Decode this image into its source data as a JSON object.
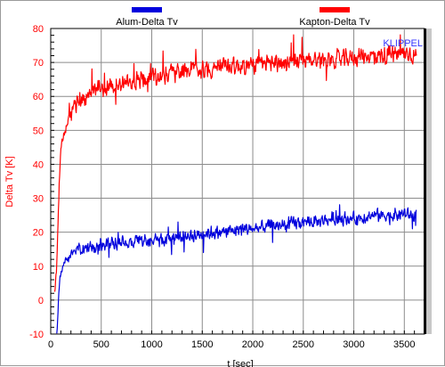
{
  "chart_data": {
    "type": "line",
    "title": "",
    "xlabel": "t [sec]",
    "ylabel": "Delta Tv [K]",
    "xlim": [
      0,
      3700
    ],
    "ylim": [
      -10,
      80
    ],
    "x_ticks": [
      0,
      500,
      1000,
      1500,
      2000,
      2500,
      3000,
      3500
    ],
    "y_ticks": [
      -10,
      0,
      10,
      20,
      30,
      40,
      50,
      60,
      70,
      80
    ],
    "grid": true,
    "legend_position": "top",
    "watermark": "KLIPPEL",
    "colors": {
      "axis_text": "#ff0000",
      "watermark": "#3333ff",
      "grid": "#808080"
    },
    "series": [
      {
        "name": "Kapton-Delta Tv",
        "color": "#ff0000",
        "x": [
          40,
          55,
          70,
          85,
          100,
          120,
          150,
          200,
          250,
          300,
          350,
          400,
          450,
          500,
          550,
          600,
          700,
          800,
          900,
          1000,
          1100,
          1200,
          1300,
          1400,
          1500,
          1600,
          1700,
          1800,
          1900,
          2000,
          2100,
          2200,
          2300,
          2400,
          2500,
          2600,
          2700,
          2800,
          2900,
          3000,
          3100,
          3200,
          3300,
          3400,
          3500,
          3550,
          3600,
          3620
        ],
        "y": [
          2,
          8,
          20,
          35,
          44,
          48,
          51,
          55,
          58,
          59,
          60,
          61,
          62,
          63,
          62,
          63,
          64,
          64,
          65,
          66,
          66,
          67,
          67,
          68,
          68,
          68,
          69,
          69,
          69,
          69,
          69.5,
          70,
          70,
          70,
          70.5,
          71,
          71,
          71,
          71,
          71.5,
          72,
          72,
          72,
          72.5,
          72.5,
          73,
          72,
          72
        ],
        "noise_amplitude": 3.2
      },
      {
        "name": "Alum-Delta Tv",
        "color": "#0000dd",
        "x": [
          60,
          70,
          80,
          90,
          100,
          120,
          150,
          200,
          250,
          300,
          400,
          500,
          600,
          700,
          800,
          900,
          1000,
          1100,
          1200,
          1300,
          1400,
          1500,
          1600,
          1700,
          1800,
          1900,
          2000,
          2100,
          2200,
          2300,
          2400,
          2500,
          2600,
          2700,
          2800,
          2900,
          3000,
          3100,
          3200,
          3300,
          3400,
          3500,
          3550,
          3600,
          3620
        ],
        "y": [
          -10,
          -5,
          2,
          6,
          8,
          10,
          12,
          13,
          14,
          15,
          15.5,
          16,
          16.5,
          17,
          17,
          17.5,
          18,
          18,
          18.5,
          19,
          19,
          19.5,
          20,
          20,
          20.5,
          21,
          21,
          21.5,
          22,
          22,
          22.5,
          23,
          23,
          23.5,
          24,
          24,
          24,
          24.5,
          25,
          25,
          25,
          25.5,
          25,
          25,
          25
        ],
        "noise_amplitude": 2.3
      }
    ]
  }
}
